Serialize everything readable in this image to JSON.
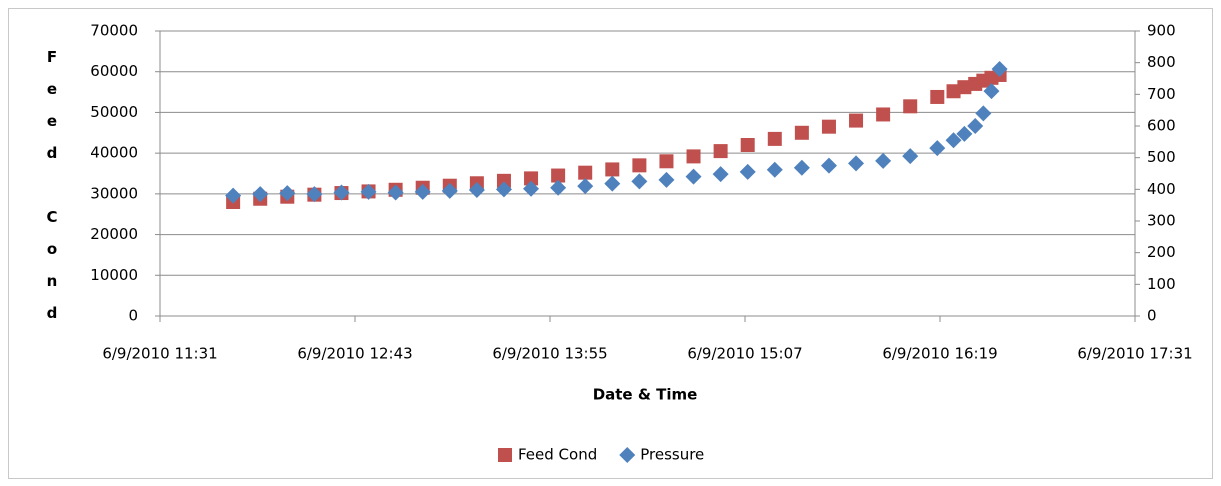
{
  "chart_data": {
    "type": "scatter",
    "x_label": "Date & Time",
    "y_label": "Feed Cond",
    "x": [
      "6/9/2010 11:58",
      "6/9/2010 12:08",
      "6/9/2010 12:18",
      "6/9/2010 12:28",
      "6/9/2010 12:38",
      "6/9/2010 12:48",
      "6/9/2010 12:58",
      "6/9/2010 13:08",
      "6/9/2010 13:18",
      "6/9/2010 13:28",
      "6/9/2010 13:38",
      "6/9/2010 13:48",
      "6/9/2010 13:58",
      "6/9/2010 14:08",
      "6/9/2010 14:18",
      "6/9/2010 14:28",
      "6/9/2010 14:38",
      "6/9/2010 14:48",
      "6/9/2010 14:58",
      "6/9/2010 15:08",
      "6/9/2010 15:18",
      "6/9/2010 15:28",
      "6/9/2010 15:38",
      "6/9/2010 15:48",
      "6/9/2010 15:58",
      "6/9/2010 16:08",
      "6/9/2010 16:18",
      "6/9/2010 16:24",
      "6/9/2010 16:28",
      "6/9/2010 16:32",
      "6/9/2010 16:35",
      "6/9/2010 16:38",
      "6/9/2010 16:41"
    ],
    "series": [
      {
        "name": "Feed Cond",
        "color": "#c0504d",
        "marker": "square",
        "values": [
          28000,
          28800,
          29300,
          29800,
          30200,
          30600,
          31000,
          31500,
          32000,
          32600,
          33200,
          33800,
          34500,
          35200,
          36000,
          37000,
          38000,
          39200,
          40500,
          42000,
          43500,
          45000,
          46500,
          48000,
          49500,
          51500,
          53800,
          55200,
          56200,
          57000,
          57800,
          58500,
          59200
        ]
      },
      {
        "name": "Pressure",
        "color": "#4f81bd",
        "marker": "diamond",
        "axis": "y2",
        "values": [
          380,
          385,
          388,
          385,
          390,
          392,
          390,
          392,
          395,
          398,
          400,
          402,
          405,
          410,
          418,
          425,
          430,
          440,
          448,
          455,
          462,
          468,
          475,
          482,
          490,
          505,
          530,
          555,
          575,
          600,
          640,
          710,
          780
        ]
      }
    ],
    "xlim": [
      "6/9/2010 11:31",
      "6/9/2010 17:31"
    ],
    "xticks": [
      "6/9/2010 11:31",
      "6/9/2010 12:43",
      "6/9/2010 13:55",
      "6/9/2010 15:07",
      "6/9/2010 16:19",
      "6/9/2010 17:31"
    ],
    "ylim": [
      0,
      70000
    ],
    "yticks": [
      0,
      10000,
      20000,
      30000,
      40000,
      50000,
      60000,
      70000
    ],
    "y2lim": [
      0,
      900
    ],
    "y2ticks": [
      0,
      100,
      200,
      300,
      400,
      500,
      600,
      700,
      800,
      900
    ],
    "grid": true,
    "legend": "bottom"
  }
}
